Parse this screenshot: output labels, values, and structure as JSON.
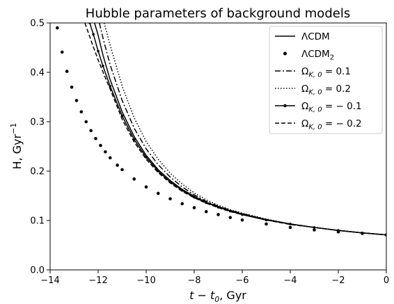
{
  "chart_data": {
    "type": "line",
    "title": "Hubble parameters of background models",
    "xlabel": {
      "main": "t − t",
      "sub": "0",
      "rest": ", Gyr"
    },
    "ylabel": {
      "main": "H, Gyr",
      "sup": "−1"
    },
    "xlim": [
      -14,
      0
    ],
    "ylim": [
      0,
      0.5
    ],
    "xticks": [
      -14,
      -12,
      -10,
      -8,
      -6,
      -4,
      -2,
      0
    ],
    "xtick_labels": [
      "−14",
      "−12",
      "−10",
      "−8",
      "−6",
      "−4",
      "−2",
      "0"
    ],
    "yticks": [
      0.0,
      0.1,
      0.2,
      0.3,
      0.4,
      0.5
    ],
    "ytick_labels": [
      "0.0",
      "0.1",
      "0.2",
      "0.3",
      "0.4",
      "0.5"
    ],
    "grid": false,
    "legend_position": "top-right",
    "series": [
      {
        "legend": {
          "pre": "ΛCDM",
          "sub": "",
          "post": ""
        },
        "style": "solid",
        "color": "#000000",
        "x": [
          -12.15,
          -12.0,
          -11.8,
          -11.5,
          -11.0,
          -10.5,
          -10.0,
          -9.5,
          -9.0,
          -8.5,
          -8.0,
          -7.5,
          -7.0,
          -6.5,
          -6.0,
          -5.0,
          -4.0,
          -3.0,
          -2.0,
          -1.0,
          0.0
        ],
        "y": [
          0.5,
          0.475,
          0.435,
          0.385,
          0.32,
          0.27,
          0.232,
          0.203,
          0.181,
          0.163,
          0.149,
          0.137,
          0.128,
          0.12,
          0.113,
          0.102,
          0.093,
          0.086,
          0.08,
          0.075,
          0.071
        ]
      },
      {
        "legend": {
          "pre": "ΛCDM",
          "sub": "2",
          "post": ""
        },
        "style": "dots",
        "color": "#000000",
        "x": [
          -13.7,
          -13.5,
          -13.3,
          -13.1,
          -12.9,
          -12.7,
          -12.5,
          -12.3,
          -12.1,
          -11.9,
          -11.7,
          -11.5,
          -11.2,
          -11.0,
          -10.5,
          -10.0,
          -9.5,
          -9.0,
          -8.5,
          -8.0,
          -7.5,
          -7.0,
          -6.5,
          -6.0,
          -5.0,
          -4.0,
          -3.0,
          -2.0,
          -1.0,
          0.0
        ],
        "y": [
          0.49,
          0.441,
          0.402,
          0.37,
          0.343,
          0.32,
          0.3,
          0.282,
          0.266,
          0.252,
          0.239,
          0.227,
          0.212,
          0.203,
          0.184,
          0.168,
          0.155,
          0.144,
          0.134,
          0.126,
          0.118,
          0.112,
          0.106,
          0.101,
          0.093,
          0.086,
          0.081,
          0.077,
          0.074,
          0.071
        ]
      },
      {
        "legend": {
          "pre": "Ω",
          "sub": "K, 0",
          "post": " = 0.1"
        },
        "style": "dashdot",
        "color": "#000000",
        "x": [
          -11.95,
          -11.8,
          -11.5,
          -11.0,
          -10.5,
          -10.0,
          -9.5,
          -9.0,
          -8.5,
          -8.0,
          -7.5,
          -7.0,
          -6.5,
          -6.0,
          -5.0,
          -4.0,
          -3.0,
          -2.0,
          -1.0,
          0.0
        ],
        "y": [
          0.5,
          0.47,
          0.415,
          0.343,
          0.287,
          0.245,
          0.213,
          0.188,
          0.168,
          0.152,
          0.139,
          0.129,
          0.121,
          0.114,
          0.102,
          0.093,
          0.086,
          0.08,
          0.075,
          0.071
        ]
      },
      {
        "legend": {
          "pre": "Ω",
          "sub": "K, 0",
          "post": " = 0.2"
        },
        "style": "dotted",
        "color": "#000000",
        "x": [
          -11.75,
          -11.5,
          -11.0,
          -10.5,
          -10.0,
          -9.5,
          -9.0,
          -8.5,
          -8.0,
          -7.5,
          -7.0,
          -6.5,
          -6.0,
          -5.0,
          -4.0,
          -3.0,
          -2.0,
          -1.0,
          0.0
        ],
        "y": [
          0.5,
          0.455,
          0.372,
          0.308,
          0.26,
          0.224,
          0.196,
          0.174,
          0.156,
          0.142,
          0.131,
          0.122,
          0.115,
          0.103,
          0.093,
          0.086,
          0.08,
          0.075,
          0.071
        ]
      },
      {
        "legend": {
          "pre": "Ω",
          "sub": "K, 0",
          "post": " = − 0.1"
        },
        "style": "solid-marker",
        "color": "#000000",
        "x": [
          -12.35,
          -12.2,
          -12.0,
          -11.8,
          -11.5,
          -11.0,
          -10.5,
          -10.0,
          -9.5,
          -9.0,
          -8.5,
          -8.0,
          -7.5,
          -7.0,
          -6.5,
          -6.0,
          -5.0,
          -4.0,
          -3.0,
          -2.0,
          -1.0,
          0.0
        ],
        "y": [
          0.5,
          0.477,
          0.443,
          0.413,
          0.372,
          0.312,
          0.264,
          0.228,
          0.2,
          0.178,
          0.161,
          0.147,
          0.136,
          0.127,
          0.119,
          0.112,
          0.101,
          0.093,
          0.086,
          0.08,
          0.075,
          0.071
        ]
      },
      {
        "legend": {
          "pre": "Ω",
          "sub": "K, 0",
          "post": " = − 0.2"
        },
        "style": "dashed",
        "color": "#000000",
        "x": [
          -12.55,
          -12.3,
          -12.0,
          -11.7,
          -11.5,
          -11.0,
          -10.5,
          -10.0,
          -9.5,
          -9.0,
          -8.5,
          -8.0,
          -7.5,
          -7.0,
          -6.5,
          -6.0,
          -5.0,
          -4.0,
          -3.0,
          -2.0,
          -1.0,
          0.0
        ],
        "y": [
          0.5,
          0.465,
          0.425,
          0.389,
          0.366,
          0.305,
          0.259,
          0.224,
          0.197,
          0.176,
          0.159,
          0.146,
          0.135,
          0.126,
          0.118,
          0.112,
          0.101,
          0.092,
          0.086,
          0.08,
          0.075,
          0.071
        ]
      }
    ]
  }
}
